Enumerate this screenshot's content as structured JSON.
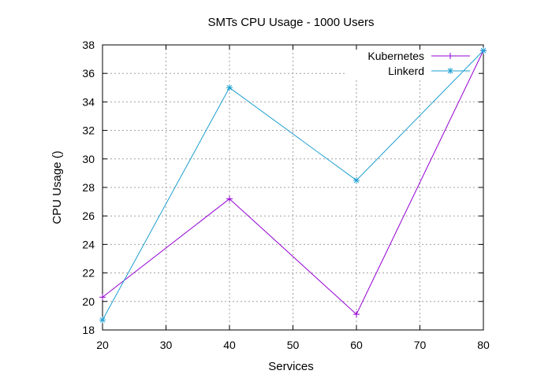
{
  "chart_data": {
    "type": "line",
    "title": "SMTs CPU Usage - 1000 Users",
    "xlabel": "Services",
    "ylabel": "CPU Usage ()",
    "xlim": [
      20,
      80
    ],
    "ylim": [
      18,
      38
    ],
    "xticks": [
      20,
      30,
      40,
      50,
      60,
      70,
      80
    ],
    "yticks": [
      18,
      20,
      22,
      24,
      26,
      28,
      30,
      32,
      34,
      36,
      38
    ],
    "grid": true,
    "legend_position": "top-right",
    "x": [
      20,
      40,
      60,
      80
    ],
    "series": [
      {
        "name": "Kubernetes",
        "values": [
          20.3,
          27.2,
          19.1,
          37.6
        ],
        "color": "#9400d3",
        "marker": "plus"
      },
      {
        "name": "Linkerd",
        "values": [
          18.7,
          35.0,
          28.5,
          37.6
        ],
        "color": "#1e9fd0",
        "marker": "star"
      }
    ]
  }
}
